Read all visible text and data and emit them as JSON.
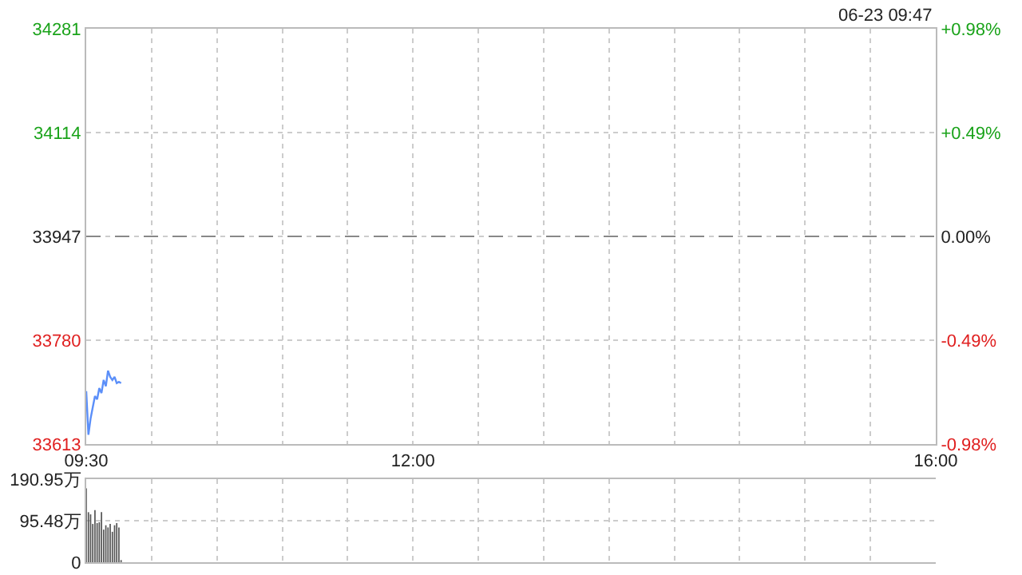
{
  "chart_data": [
    {
      "type": "line",
      "annotations": [
        "06-23 09:47"
      ],
      "x": [
        9.5,
        9.5167,
        9.5333,
        9.55,
        9.5667,
        9.5833,
        9.6,
        9.6167,
        9.6333,
        9.65,
        9.6667,
        9.6833,
        9.7,
        9.7167,
        9.7333,
        9.75,
        9.7667
      ],
      "series": [
        {
          "color": "#5b8ff9",
          "values": [
            33698,
            33628,
            33654,
            33672,
            33690,
            33685,
            33703,
            33695,
            33716,
            33706,
            33731,
            33721,
            33716,
            33721,
            33711,
            33713,
            33711
          ]
        }
      ],
      "xlim": [
        9.5,
        16
      ],
      "xticks": [
        {
          "value": 9.5,
          "label": "09:30"
        },
        {
          "value": 10,
          "label": null
        },
        {
          "value": 10.5,
          "label": null
        },
        {
          "value": 11,
          "label": null
        },
        {
          "value": 11.5,
          "label": null
        },
        {
          "value": 12,
          "label": "12:00"
        },
        {
          "value": 12.5,
          "label": null
        },
        {
          "value": 13,
          "label": null
        },
        {
          "value": 13.5,
          "label": null
        },
        {
          "value": 14,
          "label": null
        },
        {
          "value": 14.5,
          "label": null
        },
        {
          "value": 15,
          "label": null
        },
        {
          "value": 15.5,
          "label": null
        },
        {
          "value": 16,
          "label": "16:00"
        }
      ],
      "ylim": [
        33613,
        34281
      ],
      "yticks": [
        33613,
        33780,
        33947,
        34114,
        34281
      ],
      "y2lim": [
        -0.98,
        0.98
      ],
      "y2ticks": [
        {
          "value": -0.98,
          "label": "-0.98%"
        },
        {
          "value": -0.49,
          "label": "-0.49%"
        },
        {
          "value": 0,
          "label": "0.00%"
        },
        {
          "value": 0.49,
          "label": "+0.49%"
        },
        {
          "value": 0.98,
          "label": "+0.98%"
        }
      ],
      "ref_lines": [
        {
          "axis": "y",
          "value": 33947,
          "color": "#888888",
          "line_style": "dashed"
        }
      ],
      "grid": true,
      "marker": "none",
      "line_style": "solid"
    },
    {
      "type": "bar",
      "x": [
        9.5,
        9.5167,
        9.5333,
        9.55,
        9.5667,
        9.5833,
        9.6,
        9.6167,
        9.6333,
        9.65,
        9.6667,
        9.6833,
        9.7,
        9.7167,
        9.7333,
        9.75,
        9.7667
      ],
      "series": [
        {
          "color": "#555555",
          "values": [
            170,
            115,
            110,
            88,
            120,
            90,
            92,
            115,
            75,
            85,
            80,
            88,
            70,
            85,
            90,
            80,
            5
          ]
        }
      ],
      "xlim": [
        9.5,
        16
      ],
      "xticks": [
        {
          "value": 9.5,
          "label": null
        },
        {
          "value": 10,
          "label": null
        },
        {
          "value": 10.5,
          "label": null
        },
        {
          "value": 11,
          "label": null
        },
        {
          "value": 11.5,
          "label": null
        },
        {
          "value": 12,
          "label": null
        },
        {
          "value": 12.5,
          "label": null
        },
        {
          "value": 13,
          "label": null
        },
        {
          "value": 13.5,
          "label": null
        },
        {
          "value": 14,
          "label": null
        },
        {
          "value": 14.5,
          "label": null
        },
        {
          "value": 15,
          "label": null
        },
        {
          "value": 15.5,
          "label": null
        },
        {
          "value": 16,
          "label": null
        }
      ],
      "ylim": [
        0,
        190.95
      ],
      "yticks": [
        0,
        {
          "value": 95.48,
          "label": "95.48万"
        },
        {
          "value": 190.95,
          "label": "190.95万"
        }
      ],
      "grid": true,
      "tick_labels": "y"
    }
  ]
}
